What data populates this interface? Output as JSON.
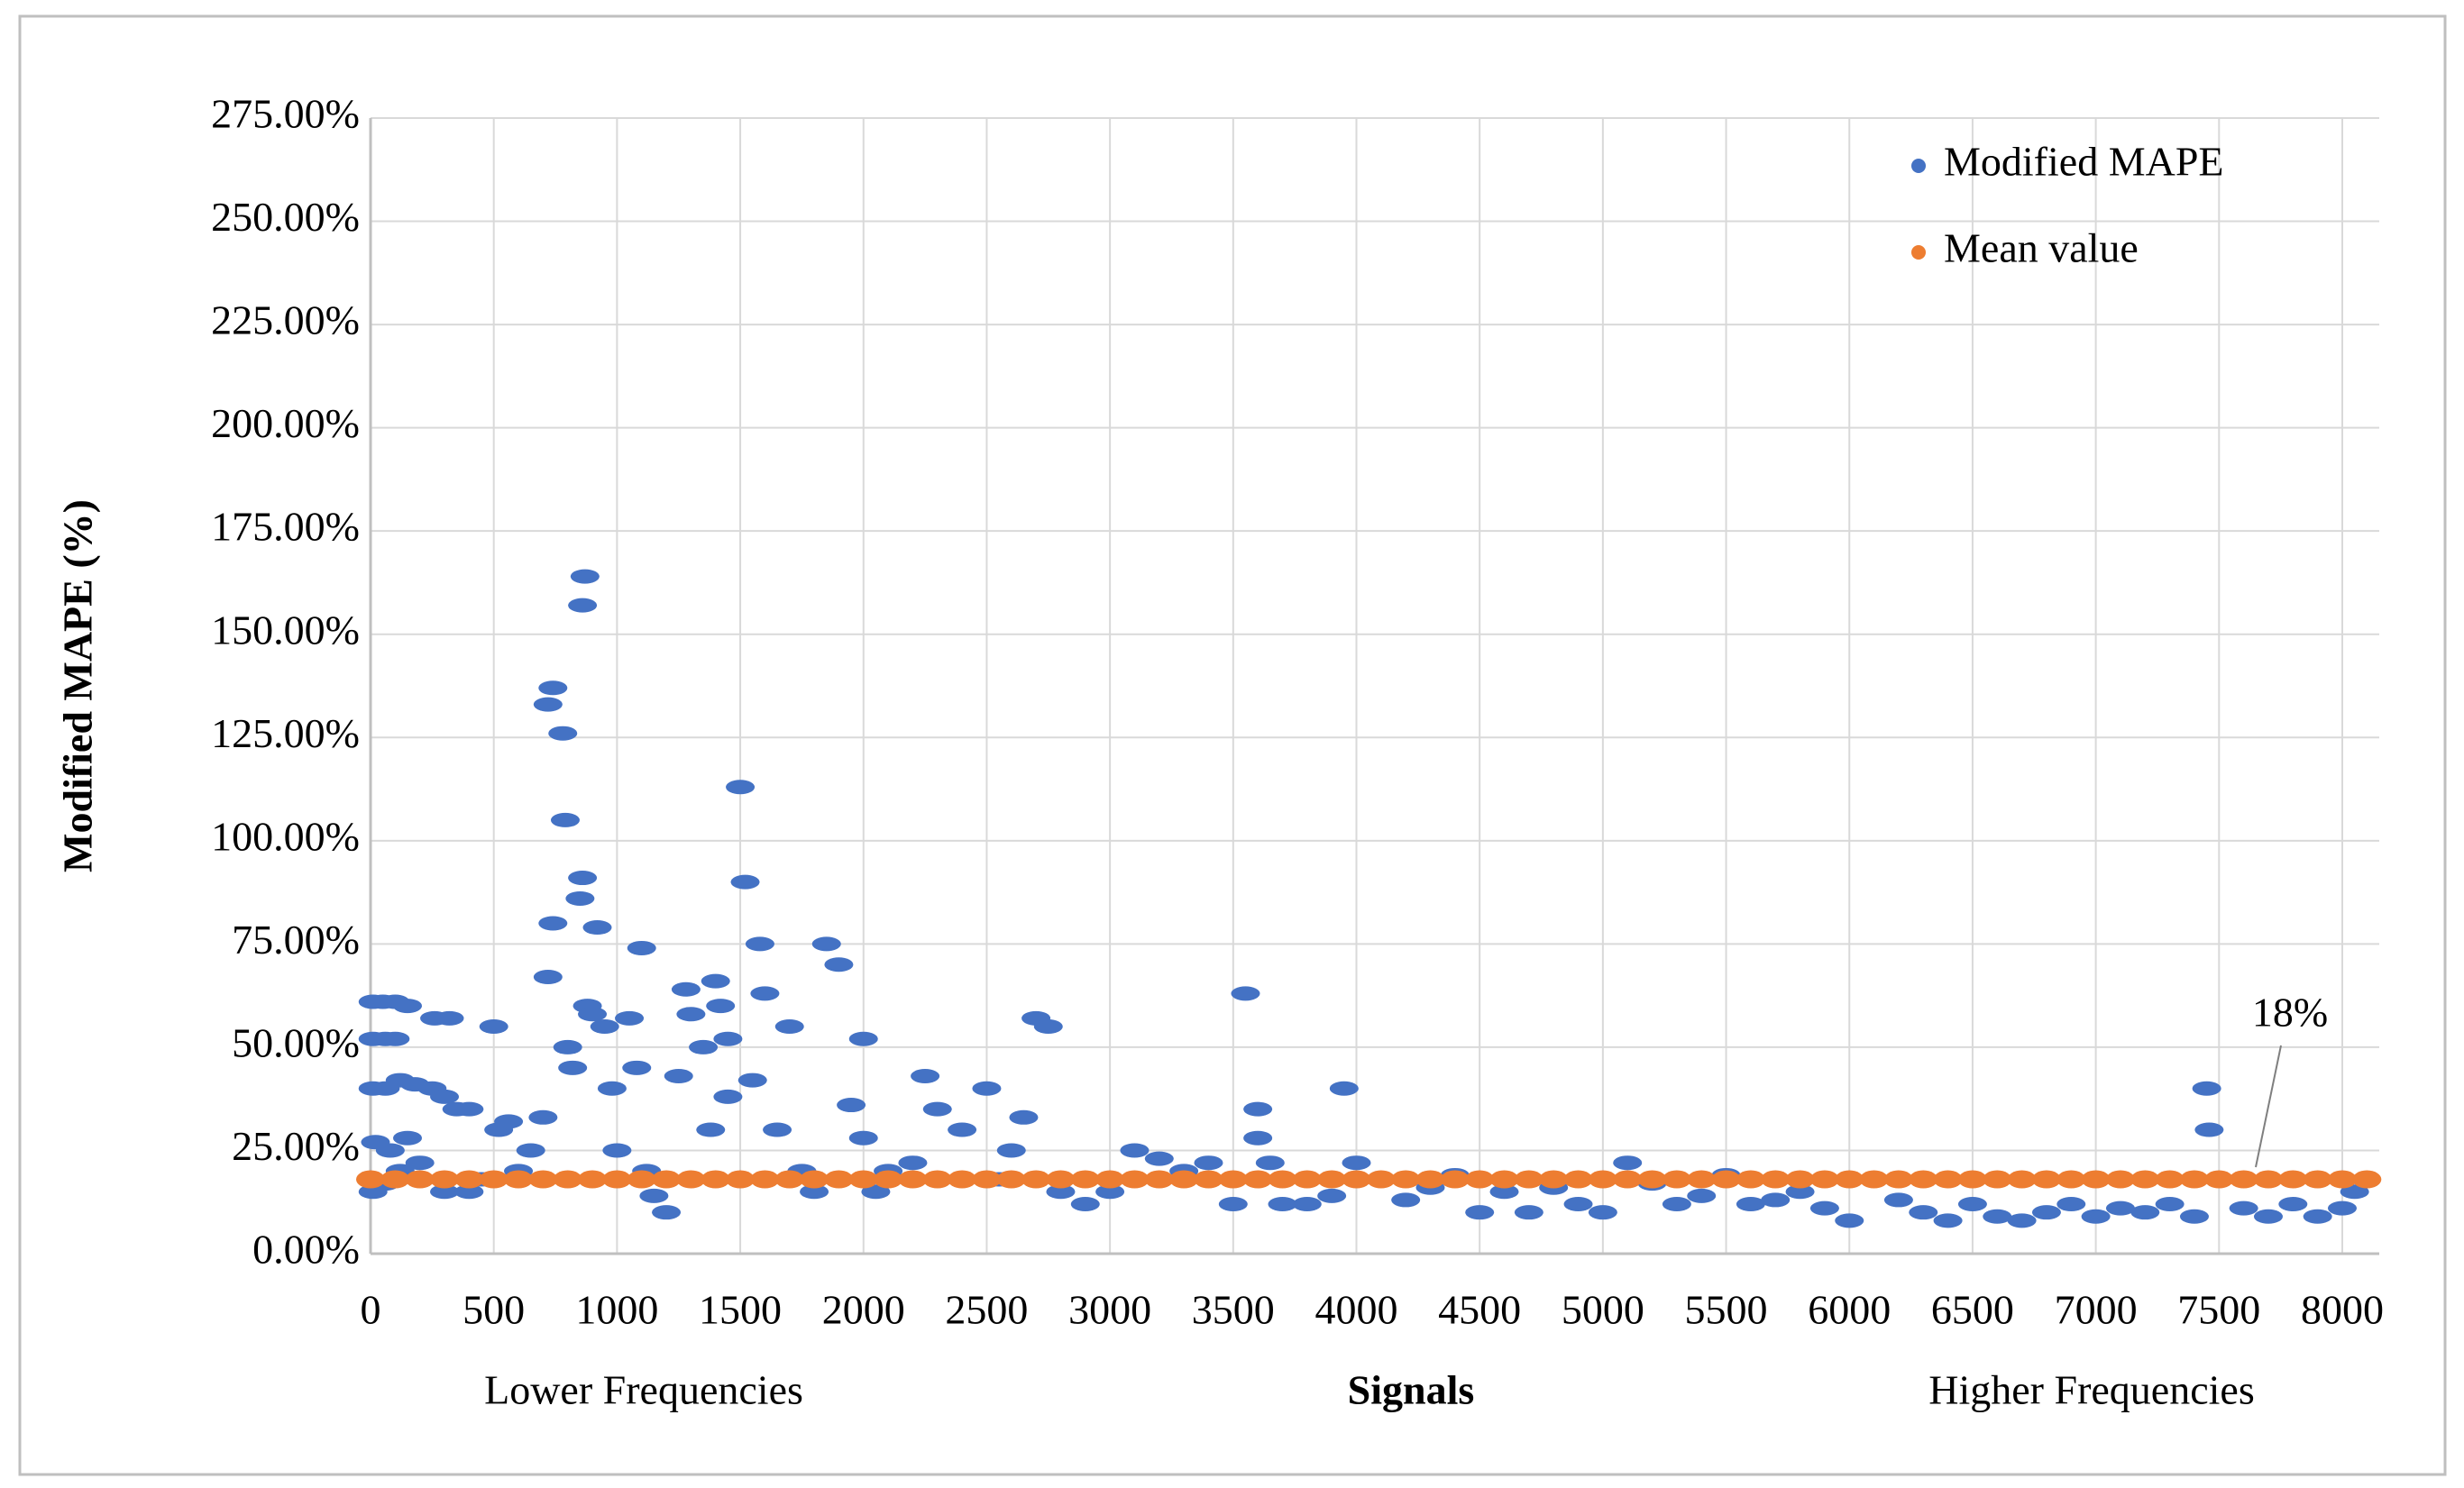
{
  "chart_data": {
    "type": "scatter",
    "y_label": "Modified  MAPE (%)",
    "x_label": "Signals",
    "x_notes": [
      "Lower Frequencies",
      "Higher Frequencies"
    ],
    "annotation": "18%",
    "legend": "top-right",
    "grid": true,
    "xlim": [
      0,
      8150
    ],
    "xticks": [
      0,
      500,
      1000,
      1500,
      2000,
      2500,
      3000,
      3500,
      4000,
      4500,
      5000,
      5500,
      6000,
      6500,
      7000,
      7500,
      8000
    ],
    "ylim": [
      0,
      275
    ],
    "yticks": [
      {
        "value": 0,
        "label": "0.00%"
      },
      {
        "value": 25,
        "label": "25.00%"
      },
      {
        "value": 50,
        "label": "50.00%"
      },
      {
        "value": 75,
        "label": "75.00%"
      },
      {
        "value": 100,
        "label": "100.00%"
      },
      {
        "value": 125,
        "label": "125.00%"
      },
      {
        "value": 150,
        "label": "150.00%"
      },
      {
        "value": 175,
        "label": "175.00%"
      },
      {
        "value": 200,
        "label": "200.00%"
      },
      {
        "value": 225,
        "label": "225.00%"
      },
      {
        "value": 250,
        "label": "250.00%"
      },
      {
        "value": 275,
        "label": "275.00%"
      }
    ],
    "series": [
      {
        "name": "Modified MAPE",
        "color": "#4472c4",
        "x": [
          10,
          50,
          100,
          150,
          10,
          60,
          100,
          10,
          60,
          120,
          180,
          20,
          80,
          150,
          10,
          60,
          120,
          200,
          250,
          300,
          260,
          320,
          350,
          400,
          300,
          400,
          450,
          500,
          520,
          560,
          600,
          650,
          700,
          720,
          740,
          720,
          740,
          780,
          790,
          800,
          820,
          850,
          860,
          860,
          870,
          880,
          900,
          920,
          950,
          980,
          1000,
          1050,
          1080,
          1100,
          1120,
          1150,
          1200,
          1250,
          1280,
          1300,
          1350,
          1380,
          1400,
          1420,
          1450,
          1450,
          1500,
          1520,
          1550,
          1580,
          1600,
          1650,
          1700,
          1750,
          1800,
          1850,
          1900,
          1950,
          2000,
          2000,
          2050,
          2100,
          2200,
          2250,
          2300,
          2400,
          2500,
          2550,
          2600,
          2650,
          2700,
          2750,
          2800,
          2900,
          3000,
          3100,
          3200,
          3300,
          3400,
          3500,
          3550,
          3600,
          3600,
          3650,
          3700,
          3800,
          3900,
          3950,
          4000,
          4100,
          4200,
          4300,
          4400,
          4500,
          4600,
          4700,
          4800,
          4900,
          5000,
          5100,
          5200,
          5300,
          5400,
          5500,
          5600,
          5700,
          5800,
          5900,
          6000,
          6100,
          6200,
          6300,
          6400,
          6500,
          6600,
          6700,
          6800,
          6900,
          7000,
          7100,
          7200,
          7300,
          7400,
          7450,
          7460,
          7500,
          7600,
          7700,
          7800,
          7900,
          8000,
          8050
        ],
        "values": [
          61,
          61,
          61,
          60,
          52,
          52,
          52,
          40,
          40,
          42,
          41,
          27,
          25,
          28,
          15,
          17,
          20,
          22,
          40,
          38,
          57,
          57,
          35,
          35,
          15,
          15,
          18,
          55,
          30,
          32,
          20,
          25,
          33,
          67,
          80,
          133,
          137,
          126,
          105,
          50,
          45,
          86,
          91,
          157,
          164,
          60,
          58,
          79,
          55,
          40,
          25,
          57,
          45,
          74,
          20,
          14,
          10,
          43,
          64,
          58,
          50,
          30,
          66,
          60,
          52,
          38,
          113,
          90,
          42,
          75,
          63,
          30,
          55,
          20,
          15,
          75,
          70,
          36,
          52,
          28,
          15,
          20,
          22,
          43,
          35,
          30,
          40,
          18,
          25,
          33,
          57,
          55,
          15,
          12,
          15,
          25,
          23,
          20,
          22,
          12,
          63,
          35,
          28,
          22,
          12,
          12,
          14,
          40,
          22,
          18,
          13,
          16,
          19,
          10,
          15,
          10,
          16,
          12,
          10,
          22,
          17,
          12,
          14,
          19,
          12,
          13,
          15,
          11,
          8,
          18,
          13,
          10,
          8,
          12,
          9,
          8,
          10,
          12,
          9,
          11,
          10,
          12,
          9,
          40,
          30,
          18,
          11,
          9,
          12,
          9,
          11,
          15
        ]
      },
      {
        "name": "Mean value",
        "color": "#ed7d31",
        "x": [
          0,
          100,
          200,
          300,
          400,
          500,
          600,
          700,
          800,
          900,
          1000,
          1100,
          1200,
          1300,
          1400,
          1500,
          1600,
          1700,
          1800,
          1900,
          2000,
          2100,
          2200,
          2300,
          2400,
          2500,
          2600,
          2700,
          2800,
          2900,
          3000,
          3100,
          3200,
          3300,
          3400,
          3500,
          3600,
          3700,
          3800,
          3900,
          4000,
          4100,
          4200,
          4300,
          4400,
          4500,
          4600,
          4700,
          4800,
          4900,
          5000,
          5100,
          5200,
          5300,
          5400,
          5500,
          5600,
          5700,
          5800,
          5900,
          6000,
          6100,
          6200,
          6300,
          6400,
          6500,
          6600,
          6700,
          6800,
          6900,
          7000,
          7100,
          7200,
          7300,
          7400,
          7500,
          7600,
          7700,
          7800,
          7900,
          8000,
          8100
        ],
        "values": [
          18,
          18,
          18,
          18,
          18,
          18,
          18,
          18,
          18,
          18,
          18,
          18,
          18,
          18,
          18,
          18,
          18,
          18,
          18,
          18,
          18,
          18,
          18,
          18,
          18,
          18,
          18,
          18,
          18,
          18,
          18,
          18,
          18,
          18,
          18,
          18,
          18,
          18,
          18,
          18,
          18,
          18,
          18,
          18,
          18,
          18,
          18,
          18,
          18,
          18,
          18,
          18,
          18,
          18,
          18,
          18,
          18,
          18,
          18,
          18,
          18,
          18,
          18,
          18,
          18,
          18,
          18,
          18,
          18,
          18,
          18,
          18,
          18,
          18,
          18,
          18,
          18,
          18,
          18,
          18,
          18,
          18
        ]
      }
    ]
  }
}
